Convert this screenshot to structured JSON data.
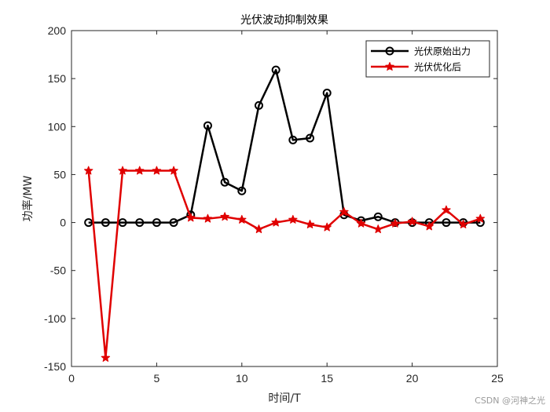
{
  "chart_data": {
    "type": "line",
    "title": "光伏波动抑制效果",
    "xlabel": "时间/T",
    "ylabel": "功率/MW",
    "xlim": [
      0,
      25
    ],
    "ylim": [
      -150,
      200
    ],
    "xticks": [
      0,
      5,
      10,
      15,
      20,
      25
    ],
    "yticks": [
      -150,
      -100,
      -50,
      0,
      50,
      100,
      150,
      200
    ],
    "grid": false,
    "legend_position": "top-right",
    "x": [
      1,
      2,
      3,
      4,
      5,
      6,
      7,
      8,
      9,
      10,
      11,
      12,
      13,
      14,
      15,
      16,
      17,
      18,
      19,
      20,
      21,
      22,
      23,
      24
    ],
    "series": [
      {
        "name": "光伏原始出力",
        "color": "#000000",
        "marker": "circle",
        "values": [
          0,
          0,
          0,
          0,
          0,
          0,
          8,
          101,
          42,
          33,
          122,
          159,
          86,
          88,
          135,
          8,
          2,
          6,
          0,
          0,
          0,
          0,
          0,
          0
        ]
      },
      {
        "name": "光伏优化后",
        "color": "#e00000",
        "marker": "star",
        "values": [
          54,
          -141,
          54,
          54,
          54,
          54,
          5,
          4,
          6,
          3,
          -7,
          0,
          3,
          -2,
          -5,
          11,
          -1,
          -7,
          -1,
          1,
          -4,
          13,
          -2,
          4
        ]
      }
    ]
  },
  "watermark": "CSDN @河神之光"
}
